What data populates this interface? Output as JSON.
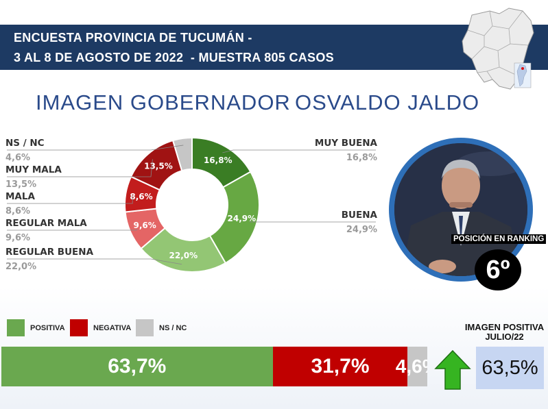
{
  "header": {
    "line1": "ENCUESTA PROVINCIA DE TUCUMÁN -",
    "line2": "3 AL 8 DE AGOSTO DE 2022  - MUESTRA 805 CASOS"
  },
  "title": {
    "part1": "IMAGEN GOBERNADOR",
    "part2": "OSVALDO JALDO"
  },
  "colors": {
    "header_band": "#1d3a63",
    "muy_buena": "#3a7d24",
    "buena": "#67a843",
    "regular_buena": "#93c674",
    "regular_mala": "#e46565",
    "mala": "#c21d1d",
    "muy_mala": "#a01313",
    "ns_nc": "#c6c6c6",
    "positiva": "#6aa84f",
    "negativa": "#c00000",
    "ring": "#2e6fb8",
    "arrow": "#36b421"
  },
  "chart_data": [
    {
      "type": "pie",
      "title": "",
      "categories": [
        "MUY BUENA",
        "BUENA",
        "REGULAR BUENA",
        "REGULAR MALA",
        "MALA",
        "MUY MALA",
        "NS / NC"
      ],
      "values": [
        16.8,
        24.9,
        22.0,
        9.6,
        8.6,
        13.5,
        4.6
      ],
      "slice_labels": [
        "16,8%",
        "24,9%",
        "22,0%",
        "9,6%",
        "8,6%",
        "13,5%",
        ""
      ],
      "category_value_labels": [
        "16,8%",
        "24,9%",
        "22,0%",
        "9,6%",
        "8,6%",
        "13,5%",
        "4,6%"
      ],
      "donut": true
    },
    {
      "type": "bar",
      "stacked": true,
      "orientation": "horizontal",
      "categories": [
        "POSITIVA",
        "NEGATIVA",
        "NS / NC"
      ],
      "values": [
        63.7,
        31.7,
        4.6
      ],
      "value_labels": [
        "63,7%",
        "31,7%",
        "4,6%"
      ],
      "legend": "top-left"
    }
  ],
  "ranking": {
    "label": "POSICIÓN EN RANKING",
    "value": "6º"
  },
  "previous": {
    "label": "IMAGEN POSITIVA JULIO/22",
    "value": "63,5%",
    "icon": "up-arrow-icon"
  },
  "images": {
    "map": "tucuman-map-icon",
    "photo": "governor-photo"
  }
}
